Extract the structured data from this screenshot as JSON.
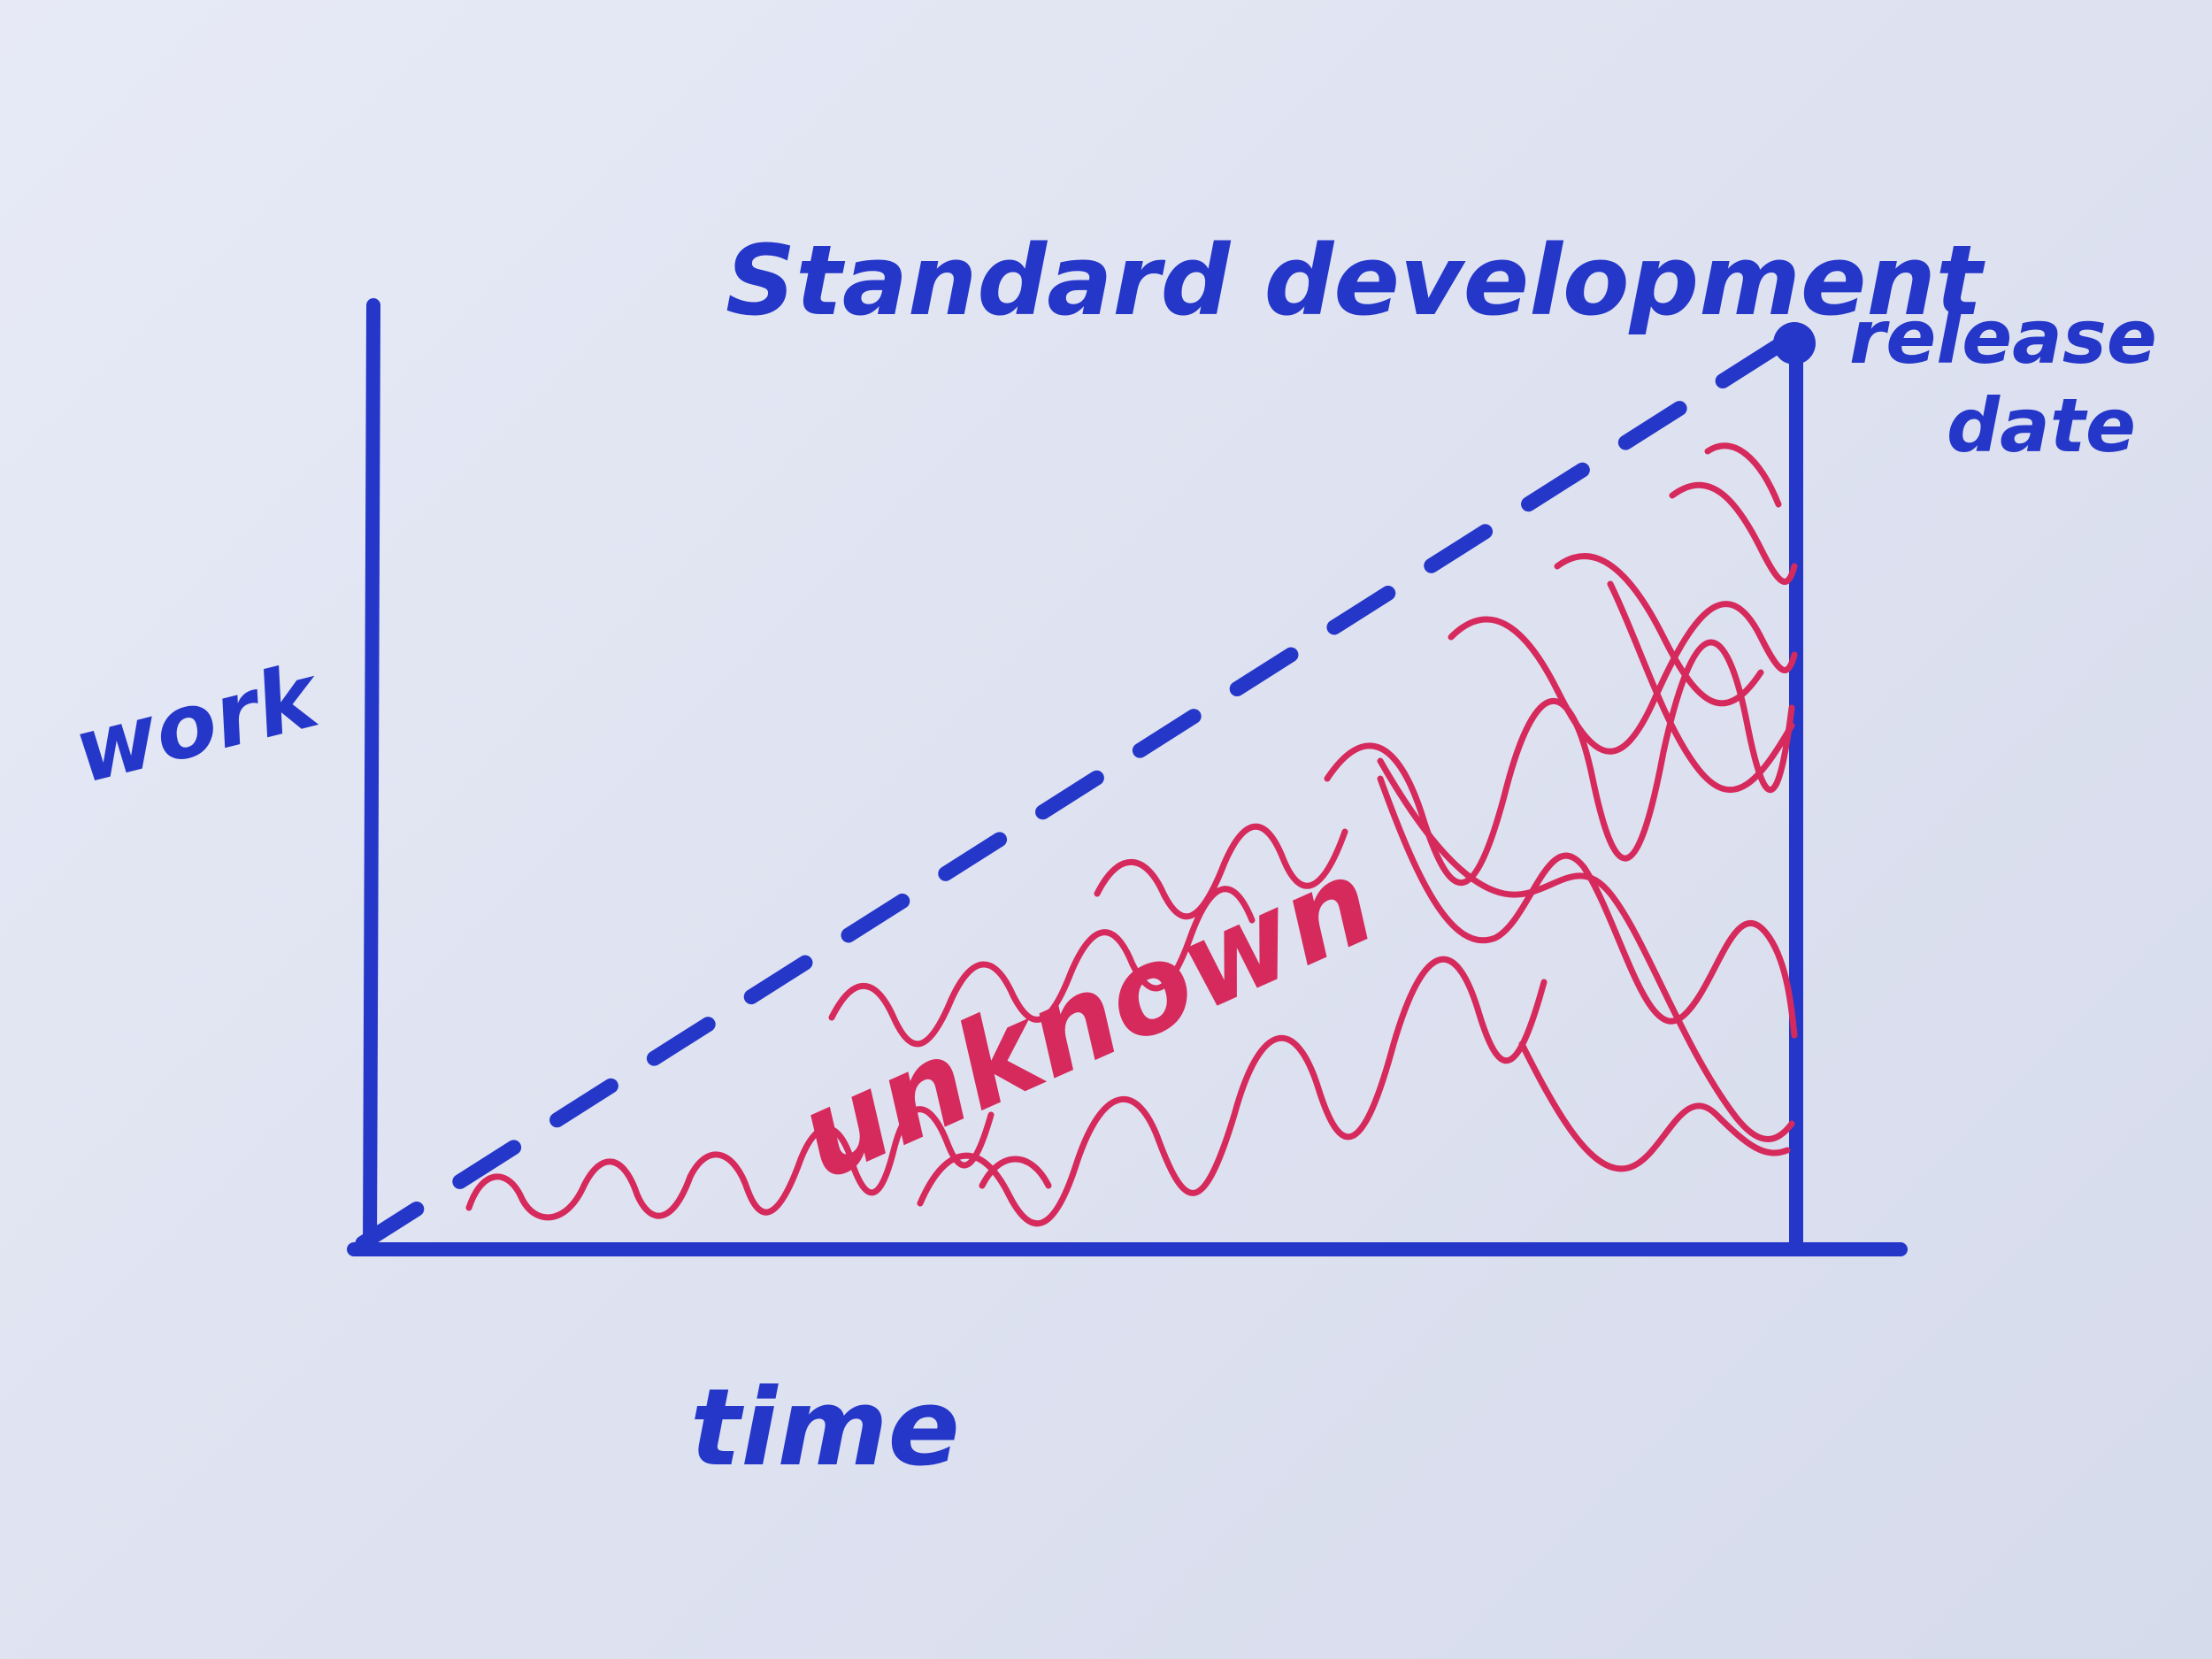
{
  "title": "Standard development",
  "axes": {
    "y_label": "work",
    "x_label": "time"
  },
  "marker": {
    "label_line1": "release",
    "label_line2": "date"
  },
  "region_label": "unknown",
  "colors": {
    "ink_blue": "#2537c9",
    "ink_red": "#d62a5d",
    "paper": "#e3e6f3"
  }
}
